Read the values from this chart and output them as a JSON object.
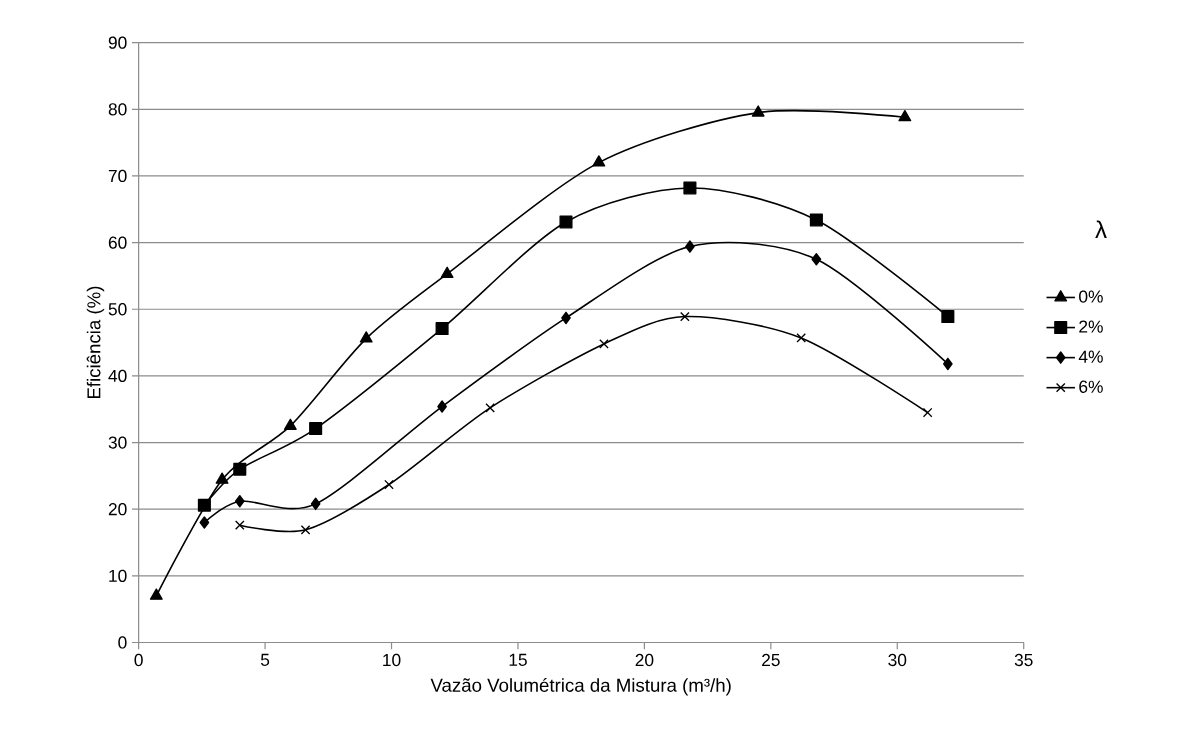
{
  "chart_data": {
    "type": "line",
    "xlabel": "Vazão Volumétrica da Mistura (m³/h)",
    "ylabel": "Eficiência (%)",
    "legend_title": "λ",
    "legend": "right",
    "grid": "y",
    "xlim": [
      0,
      35
    ],
    "xticks": [
      0,
      5,
      10,
      15,
      20,
      25,
      30,
      35
    ],
    "ylim": [
      0,
      90
    ],
    "yticks": [
      0,
      10,
      20,
      30,
      40,
      50,
      60,
      70,
      80,
      90
    ],
    "series": [
      {
        "name": "0%",
        "color": "#000000",
        "marker": "triangle",
        "x": [
          0.7,
          3.3,
          6.0,
          9.0,
          12.2,
          18.2,
          24.5,
          30.3
        ],
        "values": [
          7.0,
          24.4,
          32.5,
          45.6,
          55.3,
          72.0,
          79.5,
          78.8
        ]
      },
      {
        "name": "2%",
        "color": "#000000",
        "marker": "square",
        "x": [
          2.6,
          4.0,
          7.0,
          12.0,
          16.9,
          21.8,
          26.8,
          32.0
        ],
        "values": [
          20.6,
          26.0,
          32.1,
          47.1,
          63.1,
          68.2,
          63.4,
          48.9
        ]
      },
      {
        "name": "4%",
        "color": "#000000",
        "marker": "diamond",
        "x": [
          2.6,
          4.0,
          7.0,
          12.0,
          16.9,
          21.8,
          26.8,
          32.0
        ],
        "values": [
          18.0,
          21.2,
          20.8,
          35.4,
          48.7,
          59.4,
          57.5,
          41.8
        ]
      },
      {
        "name": "6%",
        "color": "#000000",
        "marker": "cross",
        "x": [
          4.0,
          6.6,
          9.9,
          13.9,
          18.4,
          21.6,
          26.2,
          31.2
        ],
        "values": [
          17.6,
          16.9,
          23.7,
          35.2,
          44.8,
          48.9,
          45.7,
          34.5
        ]
      }
    ]
  }
}
